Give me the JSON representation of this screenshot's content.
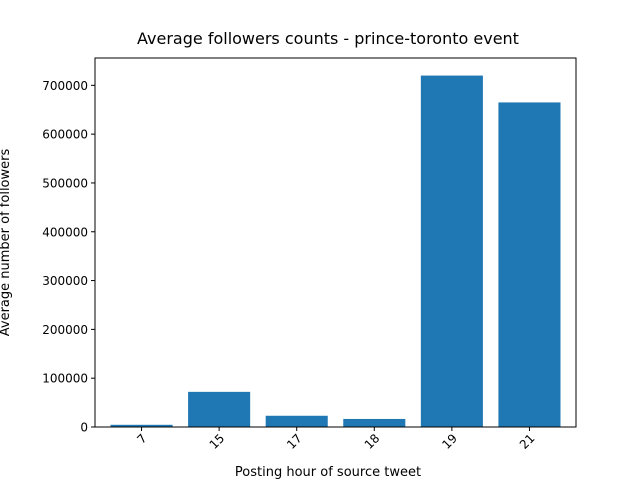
{
  "chart_data": {
    "type": "bar",
    "title": "Average followers counts - prince-toronto event",
    "xlabel": "Posting hour of source tweet",
    "ylabel": "Average number of followers",
    "categories": [
      "7",
      "15",
      "17",
      "18",
      "19",
      "21"
    ],
    "values": [
      4500,
      72000,
      23000,
      16500,
      720000,
      665000
    ],
    "ylim": [
      0,
      756000
    ],
    "yticks": [
      0,
      100000,
      200000,
      300000,
      400000,
      500000,
      600000,
      700000
    ],
    "ytick_labels": [
      "0",
      "100000",
      "200000",
      "300000",
      "400000",
      "500000",
      "600000",
      "700000"
    ],
    "xtick_rotation": 45,
    "bar_color": "#1f77b4",
    "grid": false,
    "legend": "none"
  }
}
